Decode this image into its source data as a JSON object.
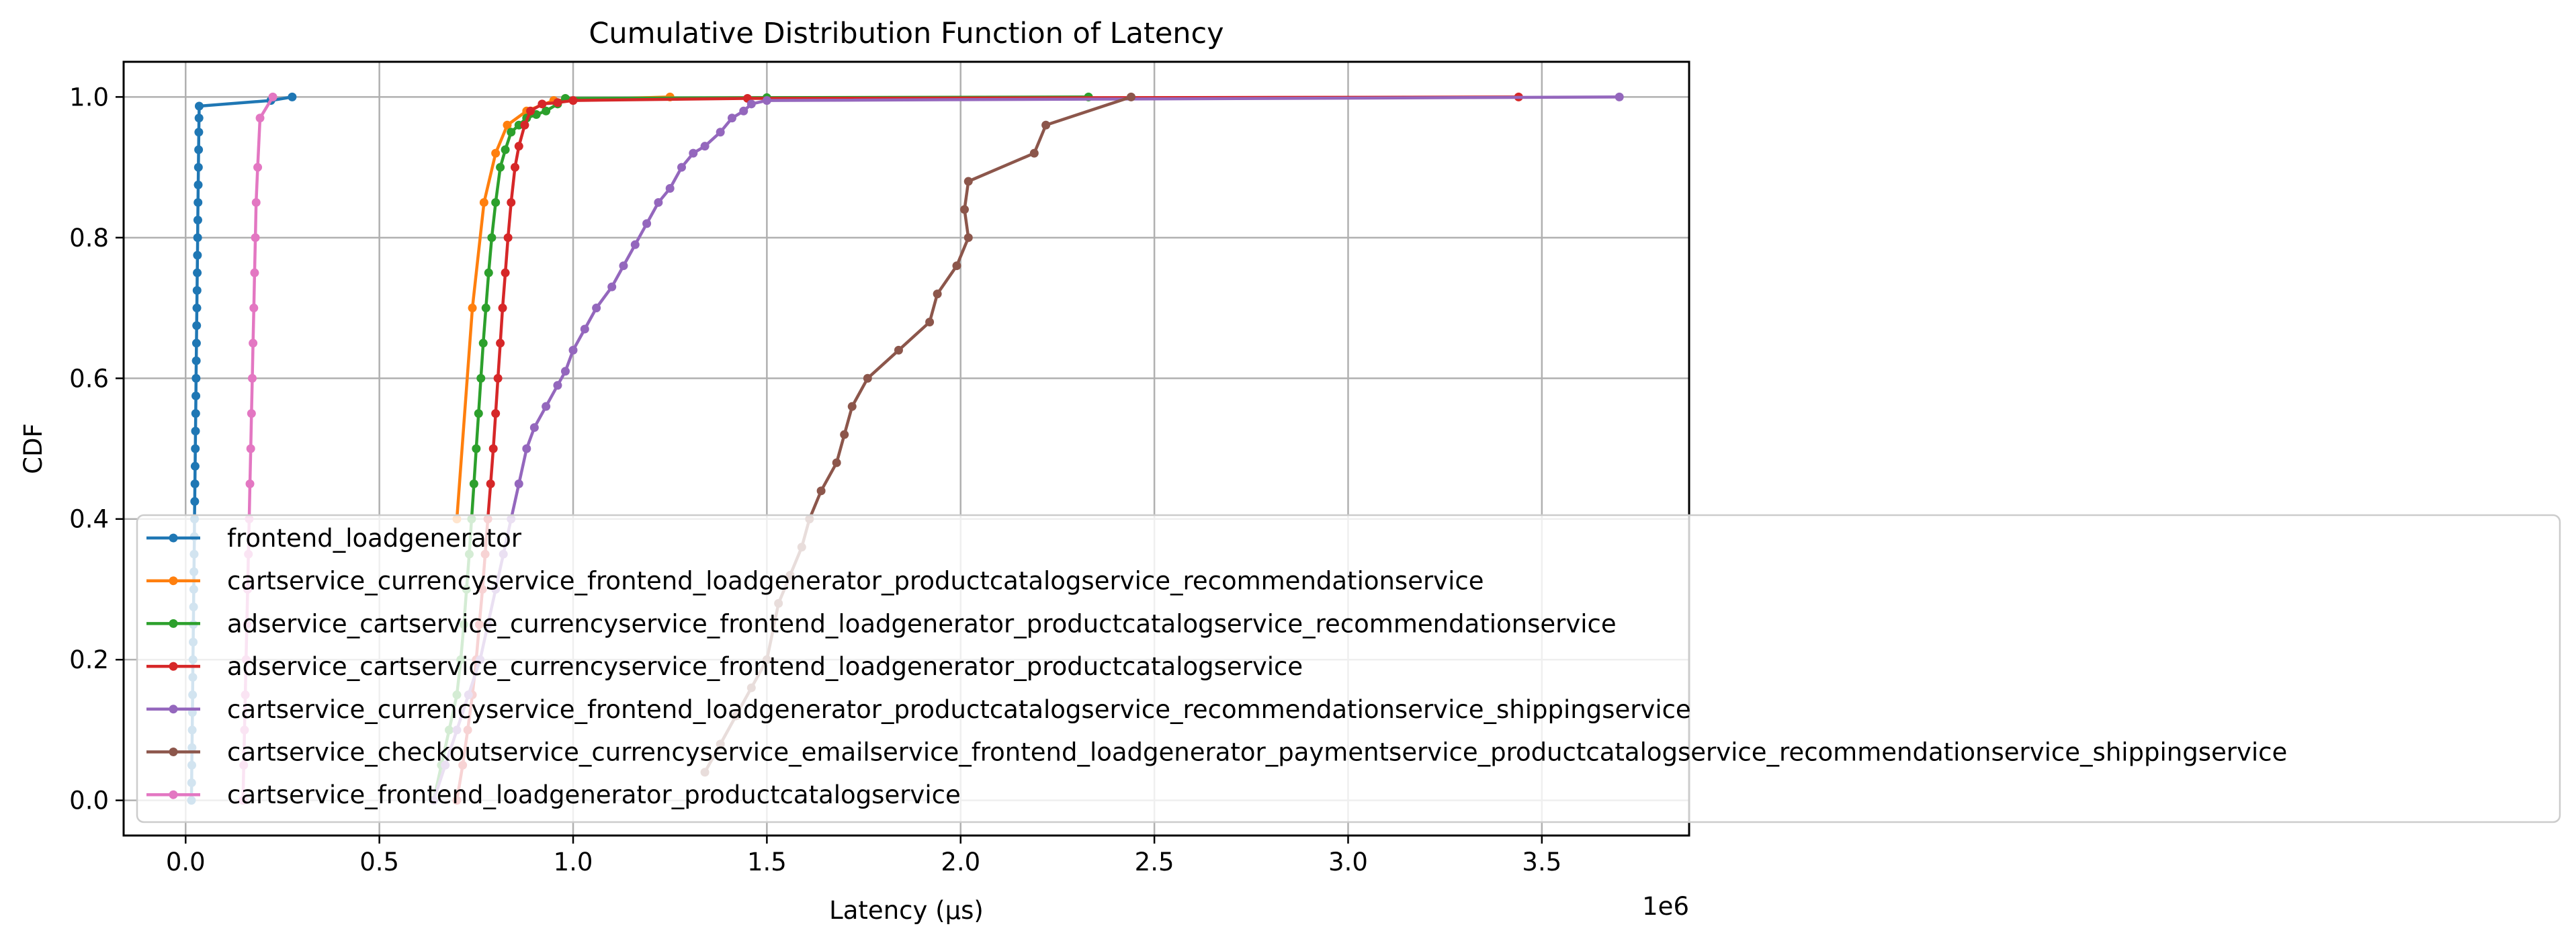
{
  "chart_data": {
    "type": "line",
    "title": "Cumulative Distribution Function of Latency",
    "xlabel": "Latency (µs)",
    "ylabel": "CDF",
    "x_offset_text": "1e6",
    "xlim": [
      -160000,
      3880000
    ],
    "ylim": [
      -0.05,
      1.05
    ],
    "x_scale_factor": 1000000,
    "xticks": [
      0,
      500000,
      1000000,
      1500000,
      2000000,
      2500000,
      3000000,
      3500000
    ],
    "xtick_labels": [
      "0.0",
      "0.5",
      "1.0",
      "1.5",
      "2.0",
      "2.5",
      "3.0",
      "3.5"
    ],
    "yticks": [
      0.0,
      0.2,
      0.4,
      0.6,
      0.8,
      1.0
    ],
    "ytick_labels": [
      "0.0",
      "0.2",
      "0.4",
      "0.6",
      "0.8",
      "1.0"
    ],
    "grid": true,
    "legend_position": "lower-left",
    "series": [
      {
        "name": "frontend_loadgenerator",
        "color": "#1f77b4",
        "x": [
          15000,
          15500,
          16000,
          16500,
          17000,
          17500,
          18000,
          18500,
          19000,
          19500,
          20000,
          20500,
          21000,
          21500,
          22000,
          22500,
          23000,
          23500,
          24000,
          24500,
          25000,
          25500,
          26000,
          26500,
          27000,
          27500,
          28000,
          28500,
          29000,
          29500,
          30000,
          30500,
          31000,
          31500,
          32000,
          32500,
          33000,
          33500,
          34000,
          34500,
          35000,
          220000,
          275000
        ],
        "y": [
          0.0,
          0.025,
          0.05,
          0.075,
          0.1,
          0.125,
          0.15,
          0.175,
          0.2,
          0.225,
          0.25,
          0.275,
          0.3,
          0.325,
          0.35,
          0.375,
          0.4,
          0.425,
          0.45,
          0.475,
          0.5,
          0.525,
          0.55,
          0.575,
          0.6,
          0.625,
          0.65,
          0.675,
          0.7,
          0.725,
          0.75,
          0.775,
          0.8,
          0.825,
          0.85,
          0.875,
          0.9,
          0.925,
          0.95,
          0.97,
          0.987,
          0.995,
          1.0
        ]
      },
      {
        "name": "cartservice_currencyservice_frontend_loadgenerator_productcatalogservice_recommendationservice",
        "color": "#ff7f0e",
        "x": [
          700000,
          740000,
          770000,
          800000,
          830000,
          880000,
          950000,
          1250000
        ],
        "y": [
          0.4,
          0.7,
          0.85,
          0.92,
          0.96,
          0.98,
          0.995,
          1.0
        ]
      },
      {
        "name": "adservice_cartservice_currencyservice_frontend_loadgenerator_productcatalogservice_recommendationservice",
        "color": "#2ca02c",
        "x": [
          640000,
          660000,
          680000,
          700000,
          710000,
          718000,
          725000,
          732000,
          738000,
          744000,
          750000,
          756000,
          762000,
          768000,
          775000,
          782000,
          790000,
          800000,
          812000,
          825000,
          840000,
          860000,
          880000,
          905000,
          930000,
          960000,
          980000,
          1500000,
          2330000
        ],
        "y": [
          0.0,
          0.05,
          0.1,
          0.15,
          0.2,
          0.25,
          0.3,
          0.35,
          0.4,
          0.45,
          0.5,
          0.55,
          0.6,
          0.65,
          0.7,
          0.75,
          0.8,
          0.85,
          0.9,
          0.925,
          0.95,
          0.96,
          0.97,
          0.975,
          0.98,
          0.99,
          0.998,
          0.999,
          1.0
        ]
      },
      {
        "name": "adservice_cartservice_currencyservice_frontend_loadgenerator_productcatalogservice",
        "color": "#d62728",
        "x": [
          700000,
          715000,
          728000,
          740000,
          750000,
          758000,
          766000,
          773000,
          780000,
          787000,
          794000,
          800000,
          806000,
          812000,
          818000,
          825000,
          832000,
          840000,
          850000,
          860000,
          875000,
          890000,
          920000,
          960000,
          1000000,
          1450000,
          3440000
        ],
        "y": [
          0.0,
          0.05,
          0.1,
          0.15,
          0.2,
          0.25,
          0.3,
          0.35,
          0.4,
          0.45,
          0.5,
          0.55,
          0.6,
          0.65,
          0.7,
          0.75,
          0.8,
          0.85,
          0.9,
          0.93,
          0.96,
          0.98,
          0.99,
          0.992,
          0.995,
          0.998,
          1.0
        ]
      },
      {
        "name": "cartservice_currencyservice_frontend_loadgenerator_productcatalogservice_recommendationservice_shippingservice",
        "color": "#9467bd",
        "x": [
          640000,
          670000,
          700000,
          730000,
          760000,
          780000,
          800000,
          820000,
          840000,
          860000,
          880000,
          900000,
          930000,
          960000,
          980000,
          1000000,
          1030000,
          1060000,
          1100000,
          1130000,
          1160000,
          1190000,
          1220000,
          1250000,
          1280000,
          1310000,
          1340000,
          1380000,
          1410000,
          1440000,
          1460000,
          1500000,
          3700000
        ],
        "y": [
          0.0,
          0.05,
          0.1,
          0.15,
          0.2,
          0.25,
          0.3,
          0.35,
          0.4,
          0.45,
          0.5,
          0.53,
          0.56,
          0.59,
          0.61,
          0.64,
          0.67,
          0.7,
          0.73,
          0.76,
          0.79,
          0.82,
          0.85,
          0.87,
          0.9,
          0.92,
          0.93,
          0.95,
          0.97,
          0.98,
          0.99,
          0.995,
          1.0
        ]
      },
      {
        "name": "cartservice_checkoutservice_currencyservice_emailservice_frontend_loadgenerator_paymentservice_productcatalogservice_recommendationservice_shippingservice",
        "color": "#8c564b",
        "x": [
          1340000,
          1380000,
          1420000,
          1460000,
          1500000,
          1530000,
          1560000,
          1590000,
          1610000,
          1640000,
          1680000,
          1700000,
          1720000,
          1760000,
          1840000,
          1920000,
          1940000,
          1990000,
          2020000,
          2010000,
          2020000,
          2190000,
          2220000,
          2440000
        ],
        "y": [
          0.04,
          0.08,
          0.12,
          0.16,
          0.2,
          0.28,
          0.32,
          0.36,
          0.4,
          0.44,
          0.48,
          0.52,
          0.56,
          0.6,
          0.64,
          0.68,
          0.72,
          0.76,
          0.8,
          0.84,
          0.88,
          0.92,
          0.96,
          1.0
        ]
      },
      {
        "name": "cartservice_frontend_loadgenerator_productcatalogservice",
        "color": "#e377c2",
        "x": [
          148000,
          150000,
          152000,
          154000,
          156000,
          158000,
          160000,
          162000,
          164000,
          166000,
          168000,
          170000,
          172000,
          174000,
          176000,
          178000,
          180000,
          182000,
          186000,
          192000,
          225000
        ],
        "y": [
          0.0,
          0.05,
          0.1,
          0.15,
          0.2,
          0.25,
          0.3,
          0.35,
          0.4,
          0.45,
          0.5,
          0.55,
          0.6,
          0.65,
          0.7,
          0.75,
          0.8,
          0.85,
          0.9,
          0.97,
          1.0
        ]
      }
    ]
  }
}
